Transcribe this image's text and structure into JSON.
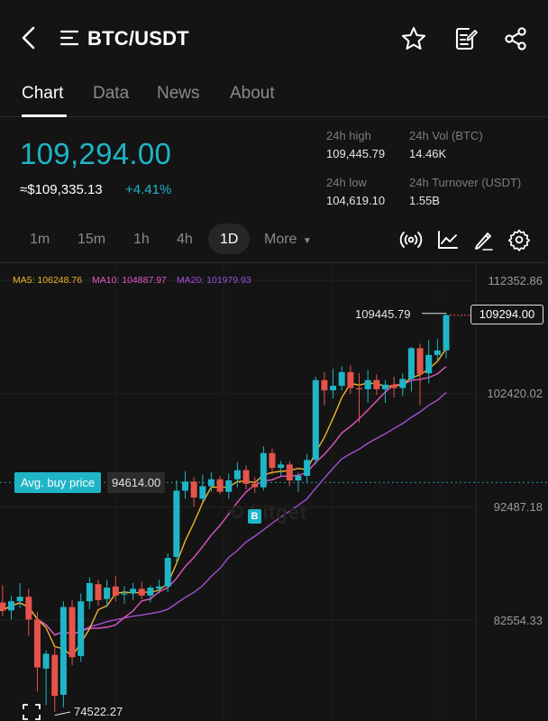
{
  "header": {
    "pair": "BTC/USDT",
    "icons": [
      "back-arrow-icon",
      "list-icon",
      "star-icon",
      "note-edit-icon",
      "share-icon"
    ]
  },
  "tabs": [
    {
      "label": "Chart",
      "active": true
    },
    {
      "label": "Data",
      "active": false
    },
    {
      "label": "News",
      "active": false
    },
    {
      "label": "About",
      "active": false
    }
  ],
  "ticker": {
    "price": "109,294.00",
    "approx": "≈$109,335.13",
    "change": "+4.41%",
    "high_label": "24h high",
    "high_value": "109,445.79",
    "vol_label": "24h Vol (BTC)",
    "vol_value": "14.46K",
    "low_label": "24h low",
    "low_value": "104,619.10",
    "turnover_label": "24h Turnover (USDT)",
    "turnover_value": "1.55B"
  },
  "intervals": {
    "items": [
      "1m",
      "15m",
      "1h",
      "4h",
      "1D"
    ],
    "selected": "1D",
    "more_label": "More",
    "tools": [
      "broadcast-icon",
      "line-chart-icon",
      "draw-pen-icon",
      "settings-gear-icon"
    ]
  },
  "colors": {
    "up": "#1fb5c7",
    "down": "#e5534b",
    "ma5": "#f0b429",
    "ma10": "#e254c5",
    "ma20": "#a24fd6"
  },
  "chart_data": {
    "type": "candlestick",
    "indicators": {
      "ma5": "MA5: 106248.76",
      "ma10": "MA10: 104887.97",
      "ma20": "MA20: 101979.93"
    },
    "y_ticks": [
      "112352.86",
      "102420.02",
      "92487.18",
      "82554.33"
    ],
    "y_tick_values": [
      112352.86,
      102420.02,
      92487.18,
      82554.33
    ],
    "high_marker": "109445.79",
    "current_price": "109294.00",
    "low_marker": "74522.27",
    "avg_buy_label": "Avg. buy price",
    "avg_buy_value": "94614.00",
    "buy_marker": "B",
    "candles": [
      {
        "o": 84100,
        "h": 85600,
        "l": 82900,
        "c": 83400
      },
      {
        "o": 83400,
        "h": 84700,
        "l": 82600,
        "c": 84200
      },
      {
        "o": 84200,
        "h": 85800,
        "l": 83600,
        "c": 84600
      },
      {
        "o": 84600,
        "h": 85300,
        "l": 81200,
        "c": 82600
      },
      {
        "o": 82600,
        "h": 83300,
        "l": 76300,
        "c": 78400
      },
      {
        "o": 78300,
        "h": 79900,
        "l": 75100,
        "c": 79600
      },
      {
        "o": 79500,
        "h": 80100,
        "l": 74522.27,
        "c": 75900
      },
      {
        "o": 76000,
        "h": 84200,
        "l": 74900,
        "c": 83700
      },
      {
        "o": 83700,
        "h": 84300,
        "l": 78600,
        "c": 79300
      },
      {
        "o": 79400,
        "h": 84900,
        "l": 78900,
        "c": 84200
      },
      {
        "o": 84200,
        "h": 86300,
        "l": 83500,
        "c": 85800
      },
      {
        "o": 85700,
        "h": 86100,
        "l": 83800,
        "c": 84300
      },
      {
        "o": 84400,
        "h": 86100,
        "l": 83700,
        "c": 85400
      },
      {
        "o": 85500,
        "h": 86400,
        "l": 84200,
        "c": 84700
      },
      {
        "o": 84800,
        "h": 85500,
        "l": 84000,
        "c": 84900
      },
      {
        "o": 84900,
        "h": 85800,
        "l": 84300,
        "c": 85300
      },
      {
        "o": 85300,
        "h": 85900,
        "l": 84400,
        "c": 84700
      },
      {
        "o": 84700,
        "h": 85600,
        "l": 84100,
        "c": 85400
      },
      {
        "o": 85300,
        "h": 86100,
        "l": 84900,
        "c": 85500
      },
      {
        "o": 85500,
        "h": 88400,
        "l": 85000,
        "c": 88000
      },
      {
        "o": 88100,
        "h": 94800,
        "l": 87600,
        "c": 93900
      },
      {
        "o": 93900,
        "h": 95600,
        "l": 93200,
        "c": 94700
      },
      {
        "o": 94700,
        "h": 95100,
        "l": 92500,
        "c": 93300
      },
      {
        "o": 93200,
        "h": 95300,
        "l": 92900,
        "c": 94300
      },
      {
        "o": 94300,
        "h": 95500,
        "l": 93800,
        "c": 94900
      },
      {
        "o": 94900,
        "h": 95200,
        "l": 93600,
        "c": 93800
      },
      {
        "o": 93800,
        "h": 95400,
        "l": 93200,
        "c": 94800
      },
      {
        "o": 94900,
        "h": 96400,
        "l": 94200,
        "c": 95700
      },
      {
        "o": 95700,
        "h": 96100,
        "l": 94000,
        "c": 94500
      },
      {
        "o": 94500,
        "h": 95100,
        "l": 93700,
        "c": 94200
      },
      {
        "o": 94200,
        "h": 97800,
        "l": 93900,
        "c": 97200
      },
      {
        "o": 97200,
        "h": 97600,
        "l": 95300,
        "c": 95900
      },
      {
        "o": 95900,
        "h": 96500,
        "l": 95200,
        "c": 96200
      },
      {
        "o": 96200,
        "h": 96500,
        "l": 94300,
        "c": 94800
      },
      {
        "o": 94800,
        "h": 95500,
        "l": 93800,
        "c": 95200
      },
      {
        "o": 95200,
        "h": 97100,
        "l": 94600,
        "c": 96600
      },
      {
        "o": 96600,
        "h": 103900,
        "l": 96200,
        "c": 103600
      },
      {
        "o": 103600,
        "h": 104300,
        "l": 101400,
        "c": 102700
      },
      {
        "o": 102700,
        "h": 104600,
        "l": 102000,
        "c": 103100
      },
      {
        "o": 103100,
        "h": 104800,
        "l": 102700,
        "c": 104300
      },
      {
        "o": 104300,
        "h": 104900,
        "l": 102400,
        "c": 102900
      },
      {
        "o": 102900,
        "h": 104200,
        "l": 99900,
        "c": 102800
      },
      {
        "o": 102800,
        "h": 104500,
        "l": 101600,
        "c": 103600
      },
      {
        "o": 103600,
        "h": 104100,
        "l": 102300,
        "c": 102800
      },
      {
        "o": 102800,
        "h": 103600,
        "l": 101600,
        "c": 103200
      },
      {
        "o": 103200,
        "h": 103900,
        "l": 102100,
        "c": 102900
      },
      {
        "o": 102900,
        "h": 104200,
        "l": 102200,
        "c": 103700
      },
      {
        "o": 103700,
        "h": 106500,
        "l": 102600,
        "c": 106400
      },
      {
        "o": 106400,
        "h": 106800,
        "l": 101400,
        "c": 104100
      },
      {
        "o": 104200,
        "h": 107100,
        "l": 103300,
        "c": 105800
      },
      {
        "o": 105800,
        "h": 107200,
        "l": 105300,
        "c": 106200
      },
      {
        "o": 106200,
        "h": 109445.79,
        "l": 105500,
        "c": 109294
      }
    ]
  }
}
